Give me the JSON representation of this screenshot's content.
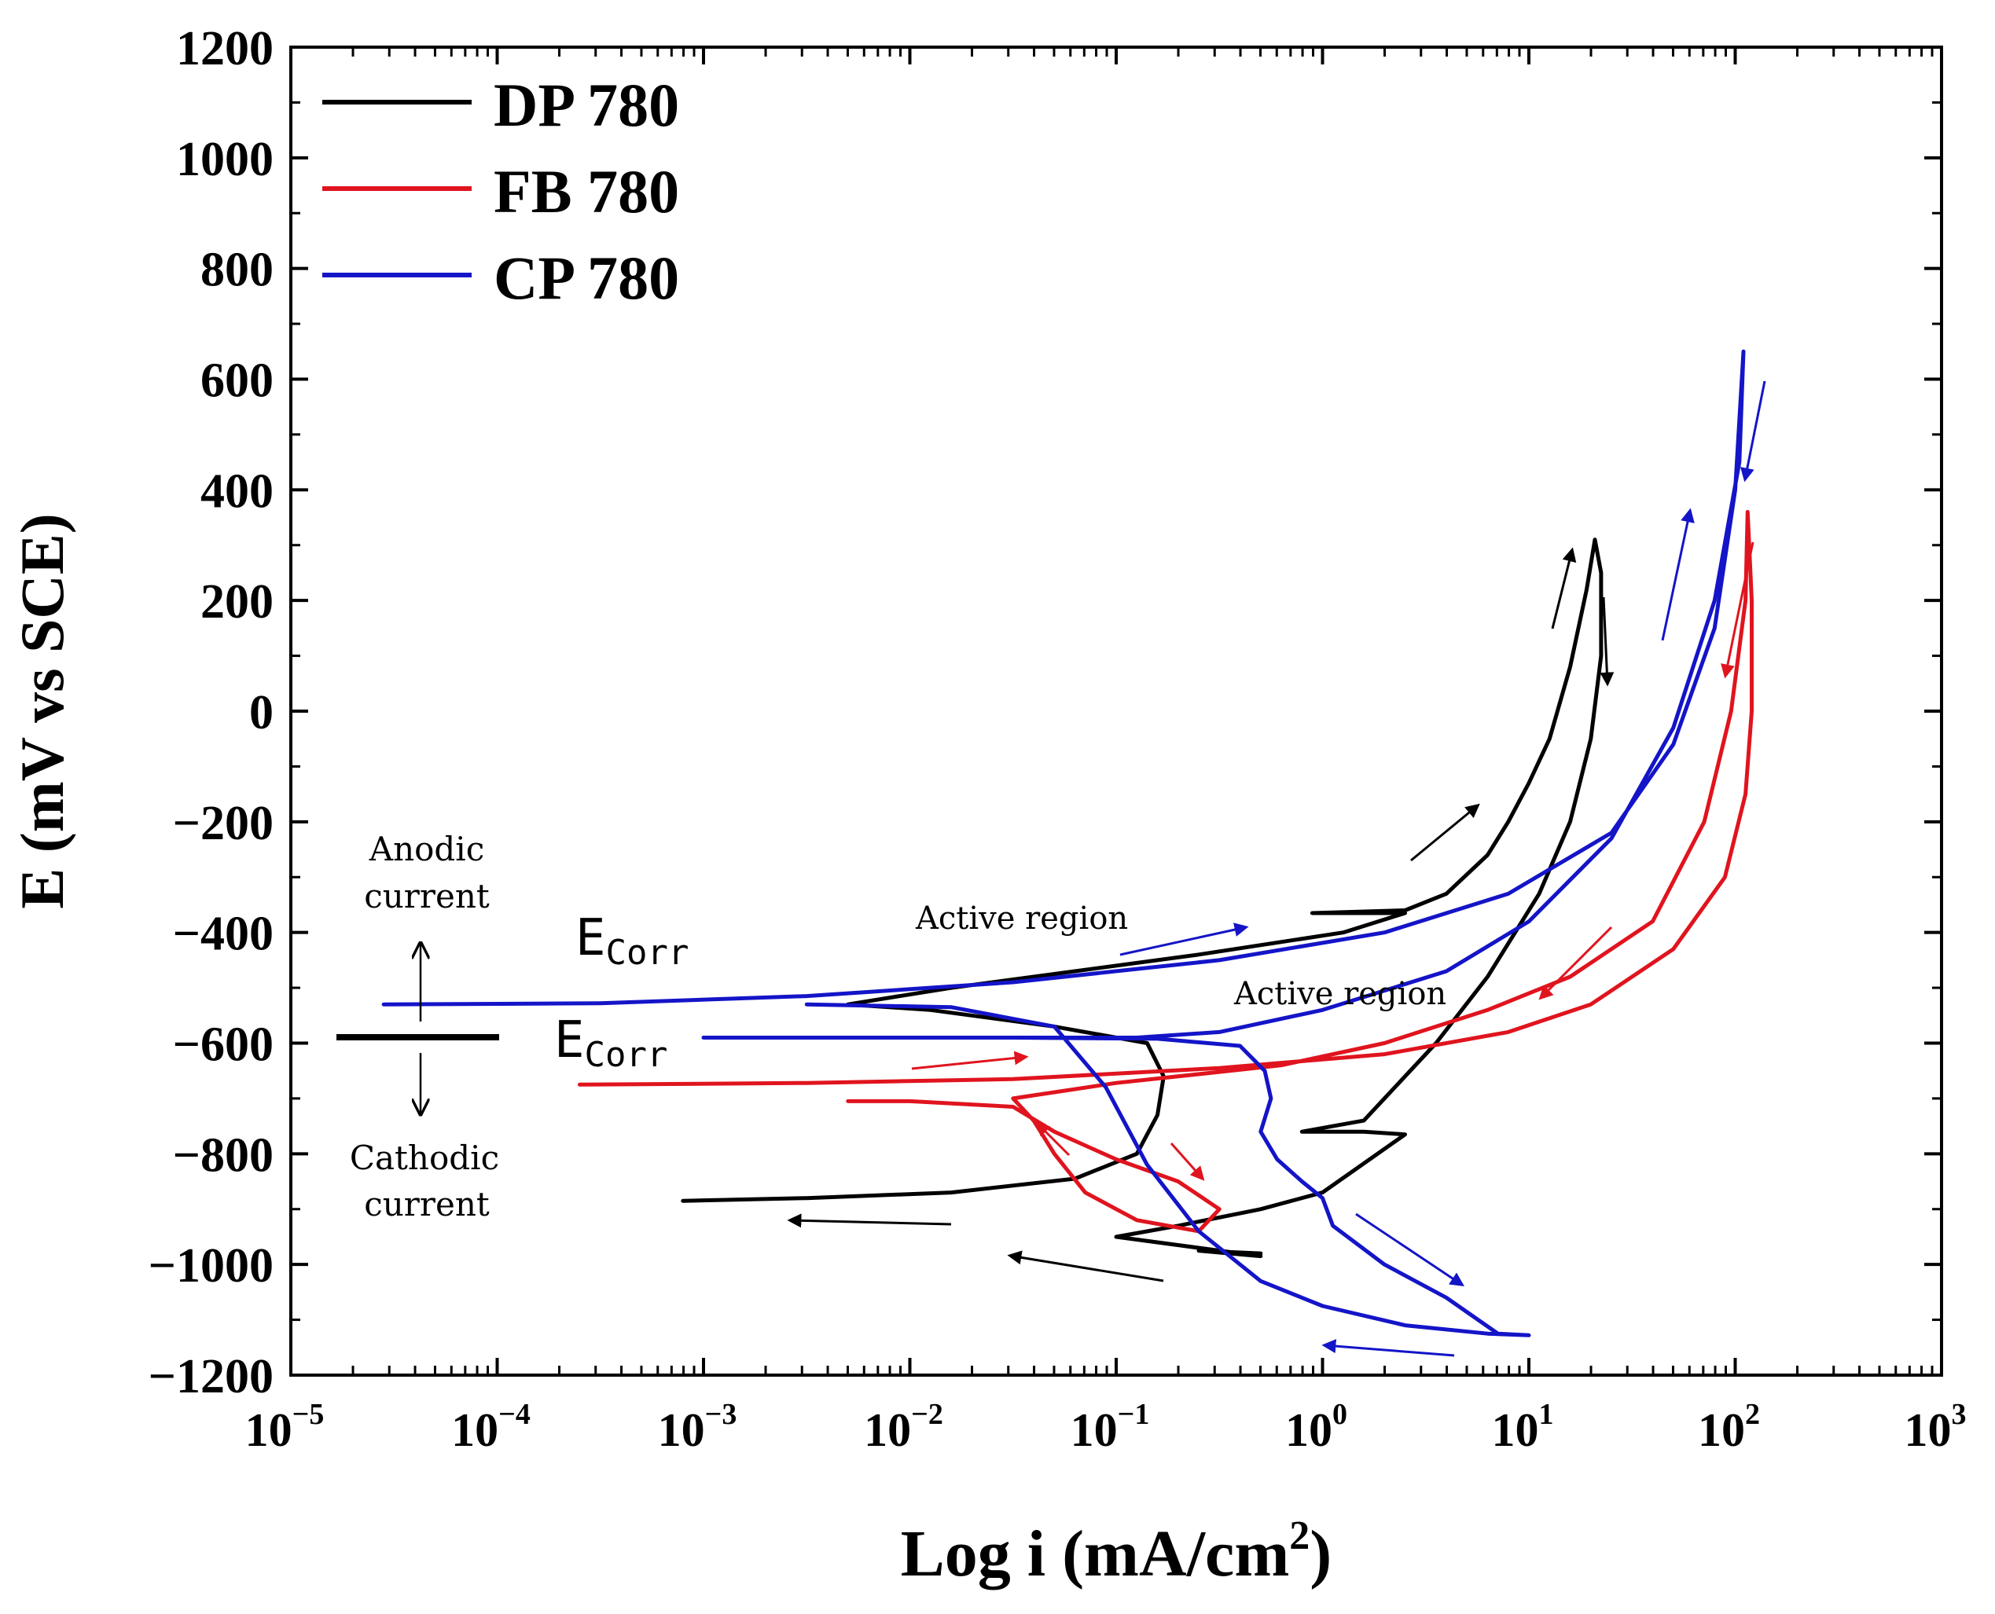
{
  "chart_data": {
    "type": "line",
    "title": "",
    "xlabel": "Log i (mA/cm",
    "xlabel_sup": "2",
    "xlabel_close": ")",
    "ylabel": "E (mV vs SCE)",
    "xscale": "log",
    "xlim_log10": [
      -5,
      3
    ],
    "ylim": [
      -1200,
      1200
    ],
    "x_ticks": [
      {
        "base": "10",
        "exp": "−5",
        "v": -5
      },
      {
        "base": "10",
        "exp": "−4",
        "v": -4
      },
      {
        "base": "10",
        "exp": "−3",
        "v": -3
      },
      {
        "base": "10",
        "exp": "−2",
        "v": -2
      },
      {
        "base": "10",
        "exp": "−1",
        "v": -1
      },
      {
        "base": "10",
        "exp": "0",
        "v": 0
      },
      {
        "base": "10",
        "exp": "1",
        "v": 1
      },
      {
        "base": "10",
        "exp": "2",
        "v": 2
      },
      {
        "base": "10",
        "exp": "3",
        "v": 3
      }
    ],
    "y_ticks": [
      "1200",
      "1000",
      "800",
      "600",
      "400",
      "200",
      "0",
      "−200",
      "−400",
      "−600",
      "−800",
      "−1000",
      "−1200"
    ],
    "y_tick_values": [
      1200,
      1000,
      800,
      600,
      400,
      200,
      0,
      -200,
      -400,
      -600,
      -800,
      -1000,
      -1200
    ],
    "legend": [
      {
        "label": "DP 780",
        "color": "#000000"
      },
      {
        "label": "FB 780",
        "color": "#e0141e"
      },
      {
        "label": "CP 780",
        "color": "#1414c8"
      }
    ],
    "legend_position": "top-left",
    "series": [
      {
        "name": "DP 780",
        "color": "#000000",
        "points": [
          [
            -3.1,
            -885
          ],
          [
            -2.5,
            -880
          ],
          [
            -1.8,
            -870
          ],
          [
            -1.2,
            -845
          ],
          [
            -0.9,
            -800
          ],
          [
            -0.8,
            -730
          ],
          [
            -0.77,
            -660
          ],
          [
            -0.85,
            -600
          ],
          [
            -1.3,
            -570
          ],
          [
            -1.9,
            -540
          ],
          [
            -2.3,
            -530
          ],
          [
            -1.8,
            -500
          ],
          [
            -1.2,
            -470
          ],
          [
            -0.6,
            -440
          ],
          [
            0.1,
            -400
          ],
          [
            0.4,
            -365
          ],
          [
            -0.05,
            -365
          ],
          [
            0.4,
            -360
          ],
          [
            0.6,
            -330
          ],
          [
            0.8,
            -260
          ],
          [
            0.9,
            -200
          ],
          [
            1.0,
            -130
          ],
          [
            1.1,
            -50
          ],
          [
            1.2,
            80
          ],
          [
            1.28,
            220
          ],
          [
            1.32,
            310
          ],
          [
            1.35,
            250
          ],
          [
            1.35,
            100
          ],
          [
            1.3,
            -50
          ],
          [
            1.2,
            -200
          ],
          [
            1.05,
            -330
          ],
          [
            0.8,
            -480
          ],
          [
            0.55,
            -600
          ],
          [
            0.35,
            -680
          ],
          [
            0.2,
            -740
          ],
          [
            -0.1,
            -760
          ],
          [
            0.2,
            -760
          ],
          [
            0.4,
            -765
          ],
          [
            0.0,
            -870
          ],
          [
            -0.3,
            -900
          ],
          [
            -0.7,
            -930
          ],
          [
            -1.0,
            -950
          ],
          [
            -0.3,
            -985
          ],
          [
            -0.6,
            -975
          ],
          [
            -0.3,
            -980
          ]
        ]
      },
      {
        "name": "FB 780",
        "color": "#e0141e",
        "points": [
          [
            -3.6,
            -675
          ],
          [
            -2.5,
            -672
          ],
          [
            -1.5,
            -665
          ],
          [
            -0.5,
            -645
          ],
          [
            0.3,
            -620
          ],
          [
            0.9,
            -580
          ],
          [
            1.3,
            -530
          ],
          [
            1.7,
            -430
          ],
          [
            1.95,
            -300
          ],
          [
            2.05,
            -150
          ],
          [
            2.08,
            0
          ],
          [
            2.08,
            200
          ],
          [
            2.06,
            360
          ],
          [
            2.05,
            200
          ],
          [
            1.98,
            0
          ],
          [
            1.85,
            -200
          ],
          [
            1.6,
            -380
          ],
          [
            1.2,
            -480
          ],
          [
            0.8,
            -540
          ],
          [
            0.3,
            -600
          ],
          [
            -0.2,
            -640
          ],
          [
            -1.0,
            -672
          ],
          [
            -1.5,
            -700
          ],
          [
            -1.4,
            -740
          ],
          [
            -1.3,
            -800
          ],
          [
            -1.15,
            -870
          ],
          [
            -0.9,
            -920
          ],
          [
            -0.6,
            -940
          ],
          [
            -0.5,
            -900
          ],
          [
            -0.7,
            -850
          ],
          [
            -1.0,
            -810
          ],
          [
            -1.3,
            -760
          ],
          [
            -1.5,
            -715
          ],
          [
            -2.0,
            -705
          ],
          [
            -2.3,
            -705
          ]
        ]
      },
      {
        "name": "CP 780",
        "color": "#1414c8",
        "points": [
          [
            -4.55,
            -530
          ],
          [
            -3.5,
            -528
          ],
          [
            -2.5,
            -515
          ],
          [
            -1.5,
            -490
          ],
          [
            -0.5,
            -450
          ],
          [
            0.3,
            -400
          ],
          [
            0.9,
            -330
          ],
          [
            1.4,
            -220
          ],
          [
            1.7,
            -60
          ],
          [
            1.9,
            150
          ],
          [
            2.0,
            400
          ],
          [
            2.04,
            650
          ],
          [
            2.02,
            450
          ],
          [
            1.9,
            200
          ],
          [
            1.7,
            -30
          ],
          [
            1.4,
            -230
          ],
          [
            1.0,
            -380
          ],
          [
            0.6,
            -470
          ],
          [
            0.0,
            -540
          ],
          [
            -0.5,
            -580
          ],
          [
            -0.9,
            -590
          ],
          [
            -2.0,
            -590
          ],
          [
            -3.0,
            -590
          ],
          [
            -1.5,
            -590
          ],
          [
            -0.8,
            -592
          ],
          [
            -0.4,
            -605
          ],
          [
            -0.28,
            -650
          ],
          [
            -0.25,
            -700
          ],
          [
            -0.3,
            -760
          ],
          [
            -0.22,
            -810
          ],
          [
            -0.1,
            -850
          ],
          [
            0.0,
            -880
          ],
          [
            0.05,
            -930
          ],
          [
            0.3,
            -1000
          ],
          [
            0.6,
            -1060
          ],
          [
            0.85,
            -1125
          ],
          [
            1.0,
            -1128
          ],
          [
            0.8,
            -1125
          ],
          [
            0.4,
            -1110
          ],
          [
            0.0,
            -1075
          ],
          [
            -0.3,
            -1030
          ],
          [
            -0.6,
            -940
          ],
          [
            -0.85,
            -820
          ],
          [
            -1.05,
            -680
          ],
          [
            -1.3,
            -570
          ],
          [
            -1.8,
            -535
          ],
          [
            -2.5,
            -530
          ]
        ]
      }
    ],
    "annotations": {
      "anodic_line1": "Anodic",
      "anodic_line2": "current",
      "cathodic_line1": "Cathodic",
      "cathodic_line2": "current",
      "active_region_1": "Active region",
      "active_region_2": "Active region",
      "ecorr_base": "E",
      "ecorr_sub": "Corr"
    }
  }
}
